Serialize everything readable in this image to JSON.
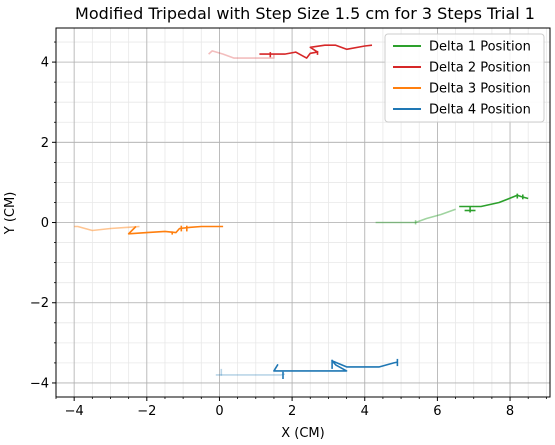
{
  "chart_data": {
    "type": "line",
    "title": "Modified Tripedal with Step Size 1.5 cm for 3 Steps Trial 1",
    "xlabel": "X (CM)",
    "ylabel": "Y (CM)",
    "xlim": [
      -4.5,
      9.1
    ],
    "ylim": [
      -4.35,
      4.85
    ],
    "xticks": [
      -4,
      -2,
      0,
      2,
      4,
      6,
      8
    ],
    "yticks": [
      -4,
      -2,
      0,
      2,
      4
    ],
    "xtick_labels": [
      "−4",
      "−2",
      "0",
      "2",
      "4",
      "6",
      "8"
    ],
    "ytick_labels": [
      "−4",
      "−2",
      "0",
      "2",
      "4"
    ],
    "grid": {
      "major": true,
      "minor": true
    },
    "legend_position": "upper-right",
    "series": [
      {
        "name": "Delta 1 Position",
        "color": "#2ca02c",
        "segments": [
          {
            "opacity": 0.45,
            "points": [
              [
                4.3,
                0.0
              ],
              [
                5.4,
                0.0
              ],
              [
                5.7,
                0.1
              ],
              [
                6.1,
                0.2
              ],
              [
                6.5,
                0.33
              ]
            ]
          },
          {
            "opacity": 0.45,
            "points": [
              [
                5.4,
                0.06
              ],
              [
                5.4,
                -0.05
              ]
            ]
          },
          {
            "opacity": 1.0,
            "points": [
              [
                6.6,
                0.4
              ],
              [
                7.2,
                0.4
              ],
              [
                7.7,
                0.5
              ],
              [
                8.2,
                0.68
              ],
              [
                8.3,
                0.65
              ],
              [
                8.5,
                0.6
              ]
            ]
          },
          {
            "opacity": 1.0,
            "points": [
              [
                6.9,
                0.4
              ],
              [
                6.9,
                0.25
              ]
            ]
          },
          {
            "opacity": 1.0,
            "points": [
              [
                6.75,
                0.3
              ],
              [
                7.05,
                0.3
              ]
            ]
          },
          {
            "opacity": 1.0,
            "points": [
              [
                8.2,
                0.72
              ],
              [
                8.2,
                0.6
              ]
            ]
          },
          {
            "opacity": 1.0,
            "points": [
              [
                8.35,
                0.7
              ],
              [
                8.35,
                0.58
              ]
            ]
          }
        ]
      },
      {
        "name": "Delta 2 Position",
        "color": "#d62728",
        "segments": [
          {
            "opacity": 0.3,
            "points": [
              [
                -0.3,
                4.2
              ],
              [
                -0.2,
                4.28
              ],
              [
                0.1,
                4.2
              ],
              [
                0.4,
                4.1
              ],
              [
                1.5,
                4.1
              ],
              [
                1.5,
                4.2
              ]
            ]
          },
          {
            "opacity": 1.0,
            "points": [
              [
                1.1,
                4.2
              ],
              [
                1.8,
                4.2
              ],
              [
                2.1,
                4.25
              ],
              [
                2.4,
                4.1
              ],
              [
                2.5,
                4.22
              ],
              [
                2.7,
                4.25
              ],
              [
                2.5,
                4.37
              ],
              [
                2.9,
                4.42
              ],
              [
                3.2,
                4.42
              ],
              [
                3.5,
                4.32
              ],
              [
                4.0,
                4.4
              ],
              [
                4.2,
                4.42
              ]
            ]
          },
          {
            "opacity": 1.0,
            "points": [
              [
                1.4,
                4.25
              ],
              [
                1.4,
                4.12
              ]
            ]
          },
          {
            "opacity": 1.0,
            "points": [
              [
                2.7,
                4.28
              ],
              [
                2.7,
                4.18
              ]
            ]
          }
        ]
      },
      {
        "name": "Delta 3 Position",
        "color": "#ff7f0e",
        "segments": [
          {
            "opacity": 0.45,
            "points": [
              [
                -4.0,
                -0.1
              ],
              [
                -3.9,
                -0.1
              ],
              [
                -3.5,
                -0.2
              ],
              [
                -3.0,
                -0.15
              ],
              [
                -2.5,
                -0.12
              ],
              [
                -2.2,
                -0.1
              ]
            ]
          },
          {
            "opacity": 1.0,
            "points": [
              [
                -2.3,
                -0.1
              ],
              [
                -2.5,
                -0.28
              ],
              [
                -2.0,
                -0.25
              ],
              [
                -1.5,
                -0.22
              ],
              [
                -1.2,
                -0.25
              ],
              [
                -1.1,
                -0.15
              ],
              [
                -0.8,
                -0.12
              ],
              [
                -0.5,
                -0.1
              ],
              [
                -0.3,
                -0.1
              ],
              [
                0.1,
                -0.1
              ]
            ]
          },
          {
            "opacity": 1.0,
            "points": [
              [
                -1.3,
                -0.22
              ],
              [
                -1.3,
                -0.3
              ]
            ]
          },
          {
            "opacity": 1.0,
            "points": [
              [
                -1.05,
                -0.08
              ],
              [
                -1.05,
                -0.22
              ]
            ]
          },
          {
            "opacity": 1.0,
            "points": [
              [
                -0.9,
                -0.08
              ],
              [
                -0.9,
                -0.22
              ]
            ]
          }
        ]
      },
      {
        "name": "Delta 4 Position",
        "color": "#1f77b4",
        "segments": [
          {
            "opacity": 0.3,
            "points": [
              [
                -0.1,
                -3.8
              ],
              [
                0.4,
                -3.8
              ],
              [
                1.0,
                -3.8
              ],
              [
                1.7,
                -3.8
              ],
              [
                1.8,
                -3.78
              ]
            ]
          },
          {
            "opacity": 0.3,
            "points": [
              [
                0.05,
                -3.65
              ],
              [
                0.05,
                -3.82
              ]
            ]
          },
          {
            "opacity": 1.0,
            "points": [
              [
                1.5,
                -3.7
              ],
              [
                1.6,
                -3.55
              ],
              [
                1.5,
                -3.7
              ],
              [
                2.0,
                -3.7
              ],
              [
                2.5,
                -3.7
              ],
              [
                3.5,
                -3.7
              ],
              [
                3.2,
                -3.55
              ],
              [
                3.1,
                -3.45
              ],
              [
                3.5,
                -3.6
              ],
              [
                4.4,
                -3.6
              ],
              [
                4.8,
                -3.5
              ],
              [
                4.9,
                -3.48
              ]
            ]
          },
          {
            "opacity": 1.0,
            "points": [
              [
                1.75,
                -3.72
              ],
              [
                1.75,
                -3.9
              ]
            ]
          },
          {
            "opacity": 1.0,
            "points": [
              [
                3.1,
                -3.42
              ],
              [
                3.1,
                -3.65
              ]
            ]
          },
          {
            "opacity": 1.0,
            "points": [
              [
                4.9,
                -3.4
              ],
              [
                4.9,
                -3.58
              ]
            ]
          }
        ]
      }
    ]
  }
}
